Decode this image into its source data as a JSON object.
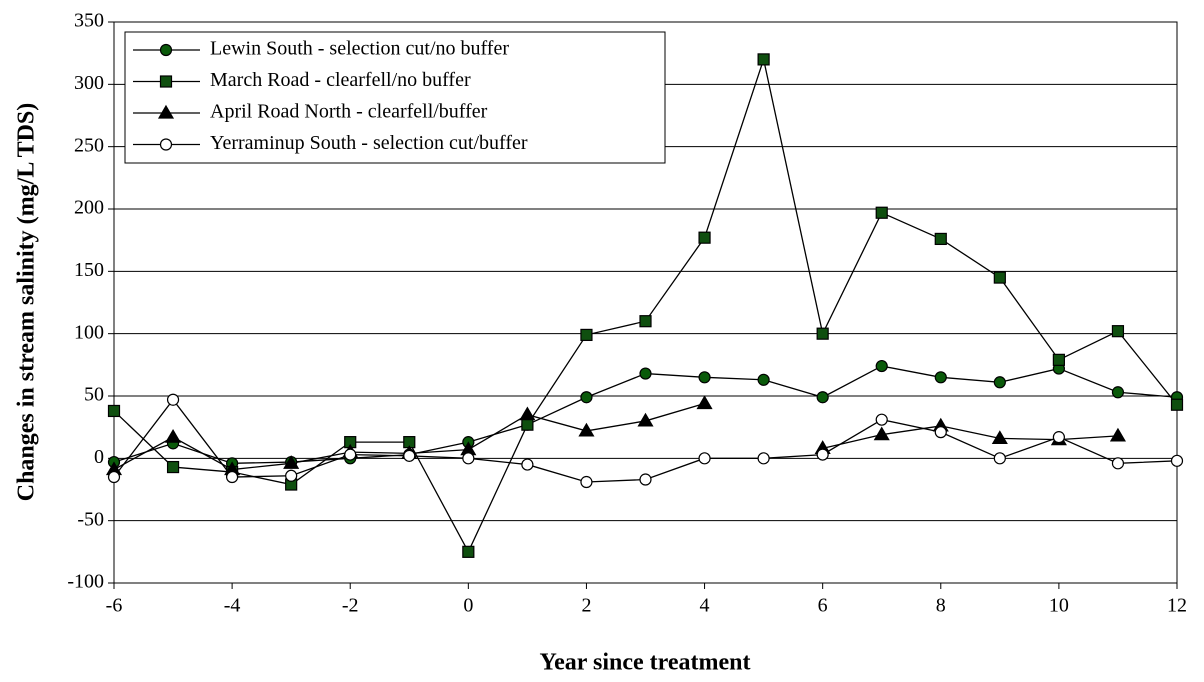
{
  "chart_data": {
    "type": "line",
    "x_label": "Year since treatment",
    "y_label": "Changes in stream salinity (mg/L TDS)",
    "x": [
      -6,
      -5,
      -4,
      -3,
      -2,
      -1,
      0,
      1,
      2,
      3,
      4,
      5,
      6,
      7,
      8,
      9,
      10,
      11,
      12
    ],
    "series": [
      {
        "name": "Lewin South - selection cut/no buffer",
        "color": "#0a5a0a",
        "marker": "circle",
        "values": [
          -3,
          12,
          -4,
          -3,
          0,
          3,
          13,
          27,
          49,
          68,
          65,
          63,
          49,
          74,
          65,
          61,
          72,
          53,
          49
        ]
      },
      {
        "name": "March Road - clearfell/no buffer",
        "color": "#0f4f0f",
        "marker": "square",
        "values": [
          38,
          -7,
          -11,
          -21,
          13,
          13,
          -75,
          27,
          99,
          110,
          177,
          320,
          100,
          197,
          176,
          145,
          79,
          102,
          43
        ]
      },
      {
        "name": "April Road North - clearfell/buffer",
        "color": "#000000",
        "marker": "triangle",
        "values": [
          -9,
          17,
          -9,
          -4,
          5,
          4,
          7,
          35,
          22,
          30,
          44,
          null,
          8,
          19,
          26,
          16,
          15,
          18,
          null
        ]
      },
      {
        "name": "Yerraminup South - selection cut/buffer",
        "color": "#ffffff",
        "marker": "circle",
        "values": [
          -15,
          47,
          -15,
          -14,
          3,
          2,
          0,
          -5,
          -19,
          -17,
          0,
          0,
          3,
          31,
          21,
          0,
          17,
          -4,
          -2
        ]
      }
    ],
    "line_color": "#000000",
    "xlim": [
      -6,
      12
    ],
    "xticks": [
      -6,
      -4,
      -2,
      0,
      2,
      4,
      6,
      8,
      10,
      12
    ],
    "ylim": [
      -100,
      350
    ],
    "yticks": [
      -100,
      -50,
      0,
      50,
      100,
      150,
      200,
      250,
      300,
      350
    ],
    "grid": true,
    "legend": "top-left"
  }
}
